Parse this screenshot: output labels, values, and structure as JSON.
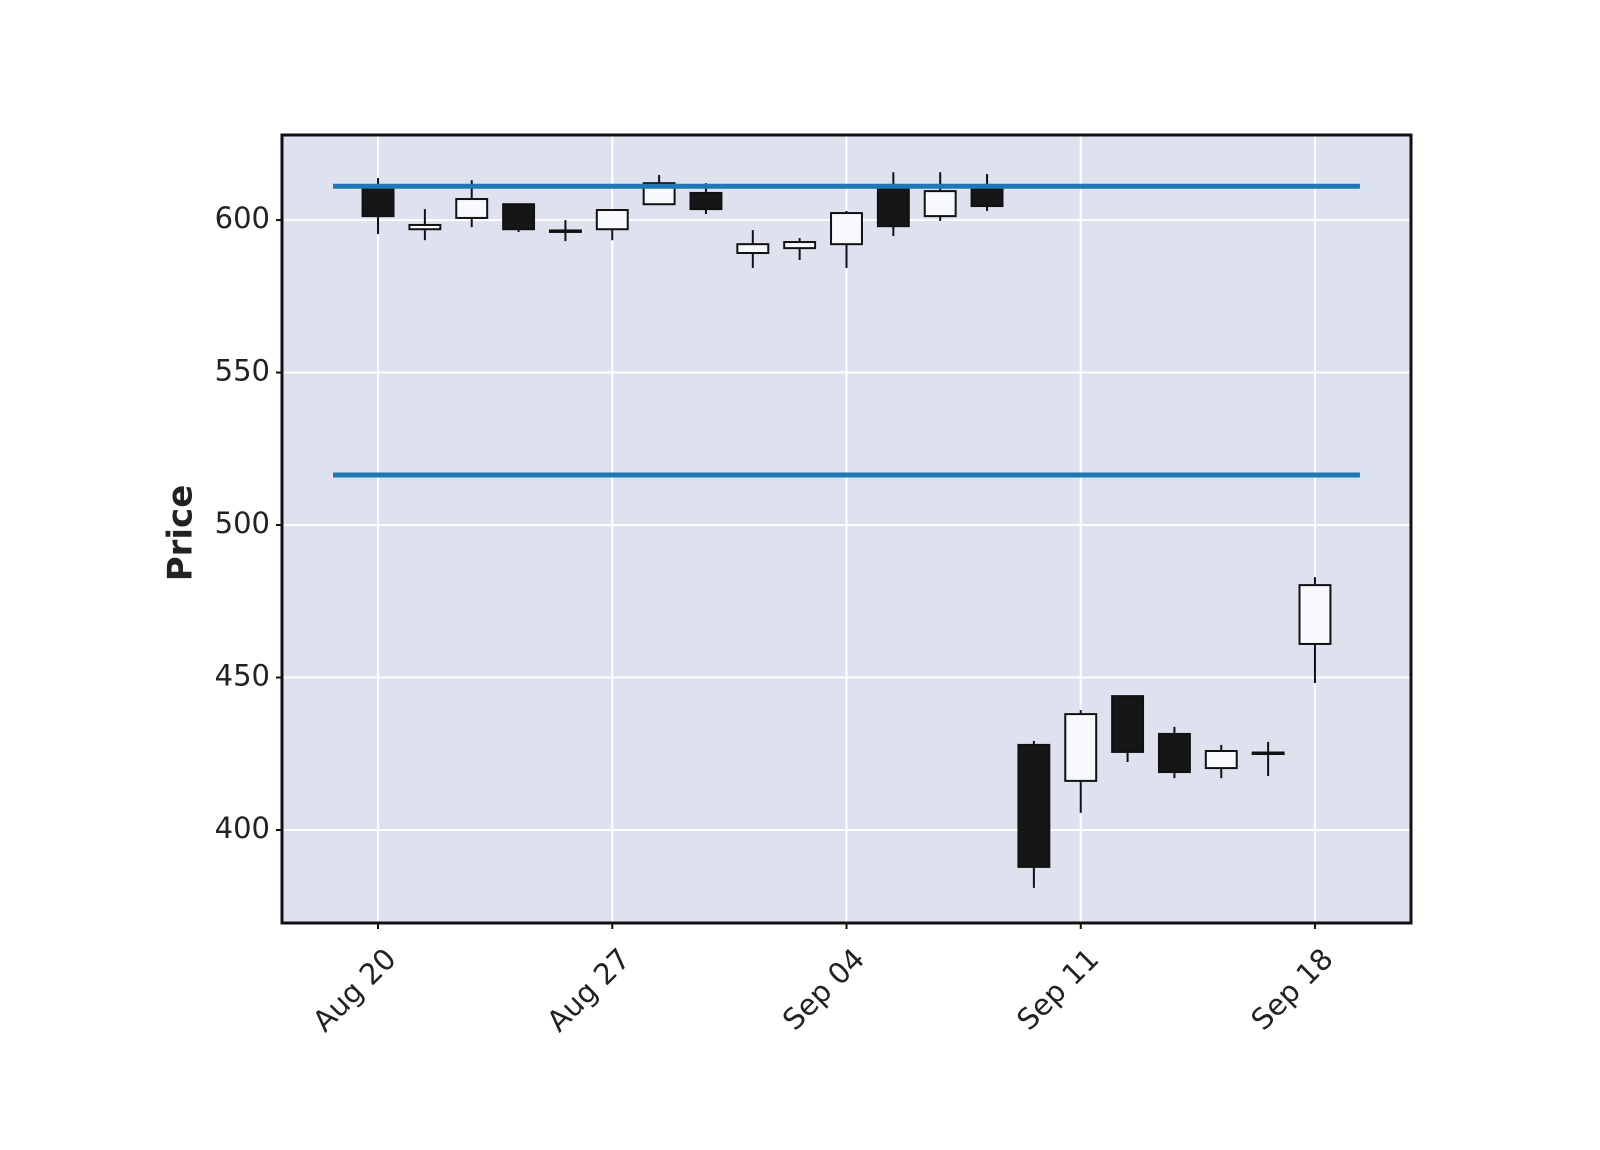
{
  "chart_data": {
    "type": "candlestick",
    "ylabel": "Price",
    "categories": [
      "Aug 20",
      null,
      null,
      null,
      null,
      "Aug 27",
      null,
      null,
      null,
      null,
      "Sep 04",
      null,
      null,
      null,
      null,
      "Sep 11",
      null,
      null,
      null,
      null,
      "Sep 18"
    ],
    "open": [
      610.5,
      597.0,
      600.7,
      605.2,
      596.4,
      597.0,
      605.2,
      608.9,
      589.2,
      590.8,
      592.1,
      610.2,
      601.3,
      610.2,
      427.9,
      416.1,
      443.9,
      431.5,
      420.3,
      425.0,
      461.0
    ],
    "high": [
      613.8,
      603.6,
      613.1,
      605.2,
      600.0,
      603.3,
      614.8,
      612.1,
      596.7,
      594.1,
      603.0,
      615.7,
      615.7,
      615.1,
      429.2,
      439.3,
      443.9,
      433.8,
      427.9,
      428.9,
      482.9
    ],
    "low": [
      595.4,
      593.4,
      597.7,
      596.1,
      593.1,
      593.4,
      605.2,
      602.0,
      584.3,
      586.9,
      584.3,
      594.8,
      599.7,
      603.0,
      381.0,
      405.6,
      422.3,
      417.0,
      417.0,
      417.7,
      448.2
    ],
    "close": [
      601.3,
      598.4,
      606.9,
      597.0,
      596.6,
      603.3,
      612.1,
      603.6,
      592.1,
      592.8,
      602.3,
      598.0,
      609.5,
      604.6,
      387.9,
      438.0,
      425.6,
      419.0,
      425.9,
      425.4,
      480.3
    ],
    "up_color": "#f8f9fc",
    "down_color": "#161616",
    "hlines": [
      611.1,
      516.4
    ],
    "hline_color": "#1f77b4",
    "ylim": [
      369.5,
      627.9
    ],
    "yticks": [
      400,
      450,
      500,
      550,
      600
    ],
    "grid": true
  }
}
